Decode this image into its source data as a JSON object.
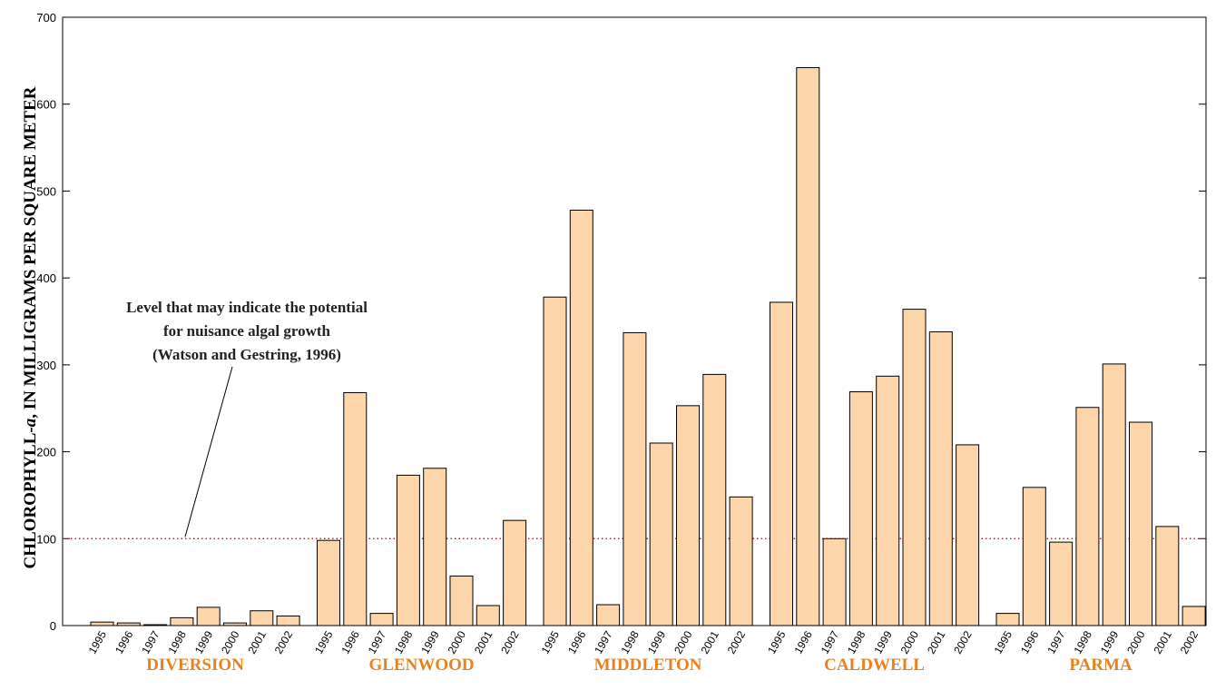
{
  "chart_data": {
    "type": "bar",
    "ylabel_prefix": "CHLOROPHYLL-",
    "ylabel_italic": "a",
    "ylabel_suffix": ", IN MILLIGRAMS PER SQUARE METER",
    "ylim": [
      0,
      700
    ],
    "yticks": [
      0,
      100,
      200,
      300,
      400,
      500,
      600,
      700
    ],
    "years": [
      "1995",
      "1996",
      "1997",
      "1998",
      "1999",
      "2000",
      "2001",
      "2002"
    ],
    "groups": [
      {
        "name": "DIVERSION",
        "values": [
          4,
          3,
          1,
          9,
          21,
          3,
          17,
          11
        ]
      },
      {
        "name": "GLENWOOD",
        "values": [
          98,
          268,
          14,
          173,
          181,
          57,
          23,
          121
        ]
      },
      {
        "name": "MIDDLETON",
        "values": [
          378,
          478,
          24,
          337,
          210,
          253,
          289,
          148
        ]
      },
      {
        "name": "CALDWELL",
        "values": [
          372,
          642,
          100,
          269,
          287,
          364,
          338,
          208
        ]
      },
      {
        "name": "PARMA",
        "values": [
          14,
          159,
          96,
          251,
          301,
          234,
          114,
          22
        ]
      }
    ],
    "threshold": {
      "value": 100,
      "label_lines": [
        "Level that may indicate the potential",
        "for nuisance algal growth",
        "(Watson and Gestring, 1996)"
      ]
    },
    "grid": false,
    "colors": {
      "bar_fill": "#fdd5ab",
      "bar_stroke": "#000000",
      "threshold_line": "#cc2222",
      "site_label": "#e8821e"
    }
  }
}
